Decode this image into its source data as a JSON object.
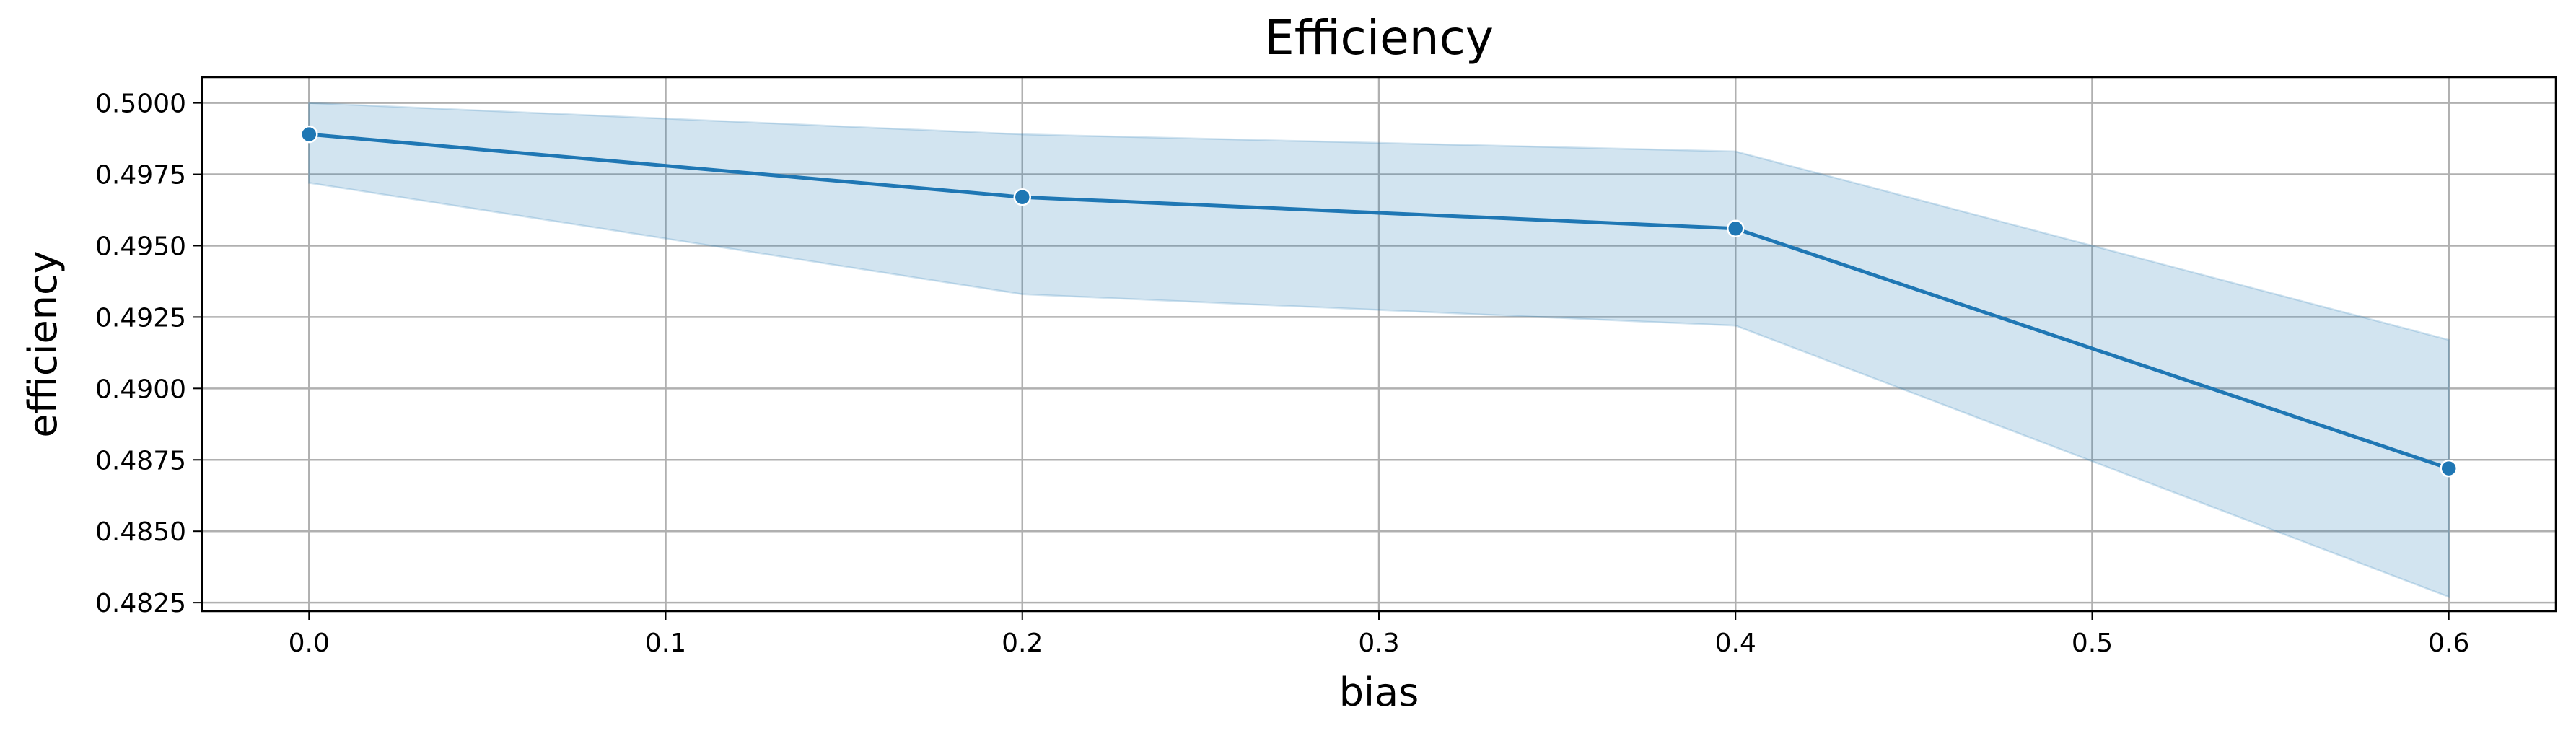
{
  "chart_data": {
    "type": "line",
    "title": "Efficiency",
    "xlabel": "bias",
    "ylabel": "efficiency",
    "xlim": [
      -0.03,
      0.63
    ],
    "ylim": [
      0.4822,
      0.5009
    ],
    "x_ticks": [
      "0.0",
      "0.1",
      "0.2",
      "0.3",
      "0.4",
      "0.5",
      "0.6"
    ],
    "y_ticks": [
      "0.4825",
      "0.4850",
      "0.4875",
      "0.4900",
      "0.4925",
      "0.4950",
      "0.4975",
      "0.5000"
    ],
    "grid": true,
    "series": [
      {
        "x": [
          0.0,
          0.2,
          0.4,
          0.6
        ],
        "y": [
          0.4989,
          0.4967,
          0.4956,
          0.4872
        ],
        "ci_lower": [
          0.4972,
          0.4933,
          0.4922,
          0.4827
        ],
        "ci_upper": [
          0.5,
          0.4989,
          0.4983,
          0.4917
        ],
        "color": "#1f77b4",
        "band_color": "#1f77b4",
        "marker": "circle"
      }
    ]
  }
}
